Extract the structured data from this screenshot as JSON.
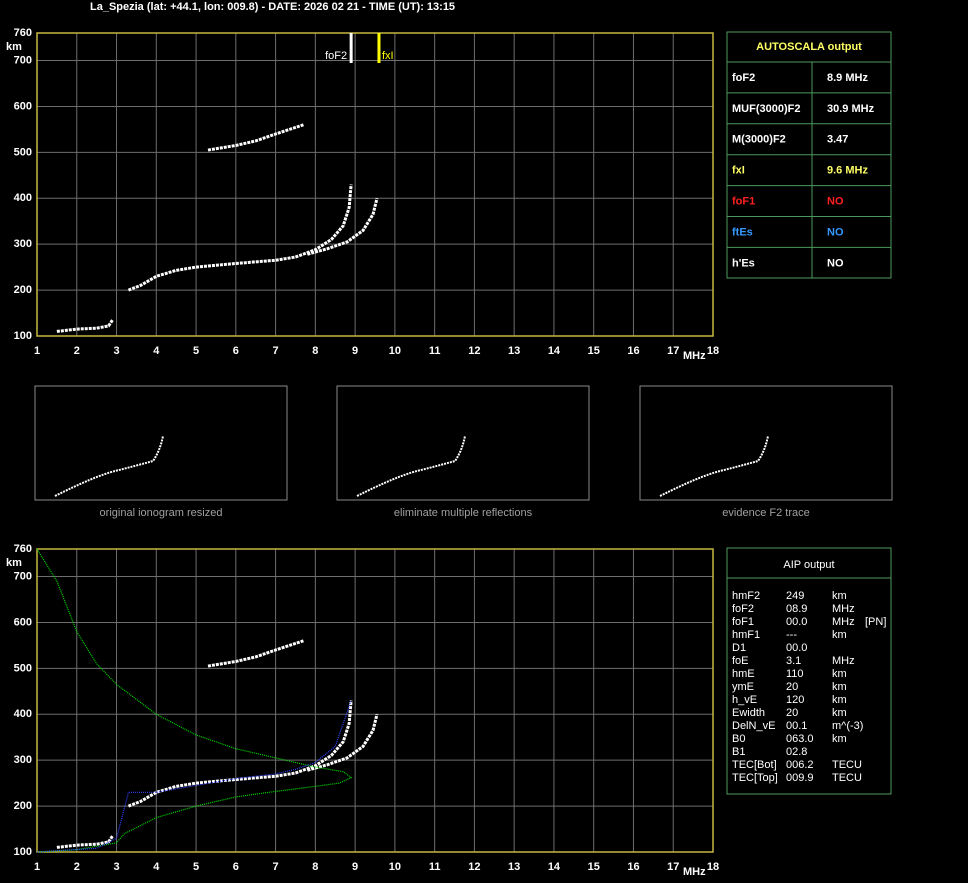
{
  "header": {
    "title": "La_Spezia (lat: +44.1, lon: 009.8) - DATE: 2026 02 21 - TIME (UT): 13:15"
  },
  "chart_data": [
    {
      "type": "line",
      "y_label": "km",
      "x_label": "MHz",
      "xlim": [
        1,
        18
      ],
      "ylim": [
        100,
        760
      ],
      "xticks": [
        1,
        2,
        3,
        4,
        5,
        6,
        7,
        8,
        9,
        10,
        11,
        12,
        13,
        14,
        15,
        16,
        17,
        18
      ],
      "yticks": [
        100,
        200,
        300,
        400,
        500,
        600,
        700,
        760
      ],
      "grid": true,
      "annotations": [
        {
          "label": "foF2",
          "x": 8.9,
          "color": "#ffffff",
          "side": "left"
        },
        {
          "label": "fxI",
          "x": 9.6,
          "color": "#ffff00",
          "side": "right"
        }
      ],
      "series": [
        {
          "color": "#ffffff",
          "x": [
            1.5,
            2.0,
            2.5,
            2.8,
            2.9
          ],
          "values": [
            110,
            115,
            117,
            122,
            135
          ]
        },
        {
          "color": "#ffffff",
          "x": [
            3.3,
            3.6,
            4.0,
            4.5,
            5.0,
            6.0,
            7.0,
            7.5,
            8.0,
            8.4,
            8.7,
            8.85,
            8.9
          ],
          "values": [
            200,
            210,
            230,
            243,
            250,
            258,
            265,
            272,
            288,
            310,
            340,
            380,
            430
          ]
        },
        {
          "color": "#ffffff",
          "x": [
            7.8,
            8.3,
            8.8,
            9.2,
            9.45,
            9.55
          ],
          "values": [
            278,
            290,
            305,
            330,
            365,
            400
          ]
        },
        {
          "color": "#ffffff",
          "x": [
            5.3,
            6.0,
            6.5,
            7.0,
            7.7
          ],
          "values": [
            505,
            515,
            525,
            540,
            560
          ]
        }
      ]
    },
    {
      "type": "line",
      "y_label": "km",
      "x_label": "MHz",
      "xlim": [
        1,
        18
      ],
      "ylim": [
        100,
        760
      ],
      "xticks": [
        1,
        2,
        3,
        4,
        5,
        6,
        7,
        8,
        9,
        10,
        11,
        12,
        13,
        14,
        15,
        16,
        17,
        18
      ],
      "yticks": [
        100,
        200,
        300,
        400,
        500,
        600,
        700,
        760
      ],
      "grid": true,
      "series": [
        {
          "color": "#ffffff",
          "x": [
            1.5,
            2.0,
            2.5,
            2.8,
            2.9
          ],
          "values": [
            110,
            115,
            117,
            122,
            135
          ]
        },
        {
          "color": "#ffffff",
          "x": [
            3.3,
            3.6,
            4.0,
            4.5,
            5.0,
            6.0,
            7.0,
            7.5,
            8.0,
            8.4,
            8.7,
            8.85,
            8.9
          ],
          "values": [
            200,
            210,
            230,
            243,
            250,
            258,
            265,
            272,
            288,
            310,
            340,
            380,
            430
          ]
        },
        {
          "color": "#ffffff",
          "x": [
            7.8,
            8.3,
            8.8,
            9.2,
            9.45,
            9.55
          ],
          "values": [
            278,
            290,
            305,
            330,
            365,
            400
          ]
        },
        {
          "color": "#ffffff",
          "x": [
            5.3,
            6.0,
            6.5,
            7.0,
            7.7
          ],
          "values": [
            505,
            515,
            525,
            540,
            560
          ]
        },
        {
          "color": "#00dd00",
          "x": [
            1.0,
            1.5,
            2.0,
            2.5,
            3.0,
            4.0,
            5.0,
            6.0,
            7.0,
            8.0,
            8.7,
            8.9,
            8.6,
            8.0,
            7.0,
            6.0,
            5.0,
            4.0,
            3.2,
            3.0,
            2.0,
            1.0
          ],
          "values": [
            760,
            690,
            580,
            510,
            465,
            400,
            355,
            325,
            305,
            285,
            275,
            262,
            250,
            243,
            232,
            220,
            200,
            175,
            140,
            120,
            105,
            100
          ]
        },
        {
          "color": "#3344ff",
          "x": [
            1.0,
            2.5,
            3.0,
            3.3,
            4.0,
            5.0,
            6.0,
            7.0,
            7.5,
            8.0,
            8.5,
            8.9
          ],
          "values": [
            100,
            108,
            130,
            230,
            230,
            245,
            260,
            270,
            280,
            295,
            330,
            430
          ]
        }
      ]
    }
  ],
  "thumbnails": [
    {
      "caption": "original ionogram resized"
    },
    {
      "caption": "eliminate multiple reflections"
    },
    {
      "caption": "evidence F2 trace"
    }
  ],
  "autoscala": {
    "title": "AUTOSCALA output",
    "rows": [
      {
        "label": "foF2",
        "value": "8.9 MHz",
        "color": "#ffffff"
      },
      {
        "label": "MUF(3000)F2",
        "value": "30.9 MHz",
        "color": "#ffffff"
      },
      {
        "label": "M(3000)F2",
        "value": "3.47",
        "color": "#ffffff"
      },
      {
        "label": "fxI",
        "value": "9.6 MHz",
        "color": "#ffff66"
      },
      {
        "label": "foF1",
        "value": "NO",
        "color": "#ff2020"
      },
      {
        "label": "ftEs",
        "value": "NO",
        "color": "#3399ff"
      },
      {
        "label": "h'Es",
        "value": "NO",
        "color": "#ffffff"
      }
    ]
  },
  "aip": {
    "title": "AIP output",
    "rows": [
      [
        "hmF2",
        "249",
        "km"
      ],
      [
        "foF2",
        "08.9",
        "MHz"
      ],
      [
        "foF1",
        "00.0",
        "MHz",
        "[PN]"
      ],
      [
        "hmF1",
        "---",
        "km"
      ],
      [
        "D1",
        "00.0"
      ],
      [
        "foE",
        "3.1",
        "MHz"
      ],
      [
        "hmE",
        "110",
        "km"
      ],
      [
        "ymE",
        "20",
        "km"
      ],
      [
        "h_vE",
        "120",
        "km"
      ],
      [
        "Ewidth",
        "20",
        "km"
      ],
      [
        "DelN_vE",
        "00.1",
        "m^(-3)"
      ],
      [
        "B0",
        "063.0",
        "km"
      ],
      [
        "B1",
        "02.8"
      ],
      [
        "TEC[Bot]",
        "006.2",
        "TECU"
      ],
      [
        "TEC[Top]",
        "009.9",
        "TECU"
      ]
    ]
  }
}
